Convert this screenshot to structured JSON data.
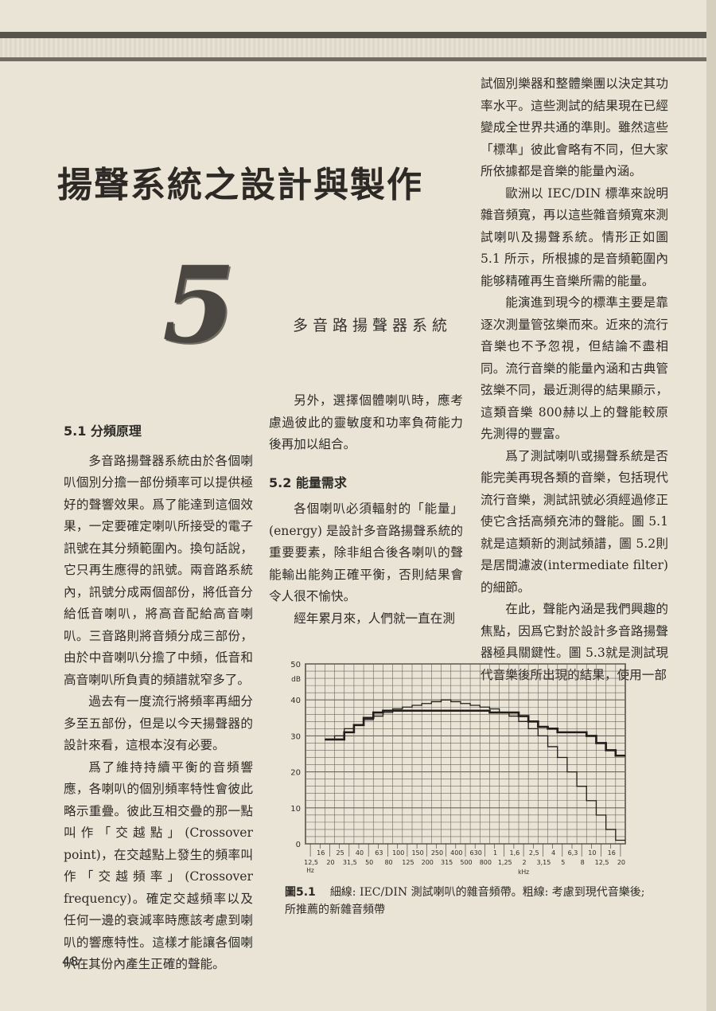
{
  "header": {
    "title": "揚聲系統之設計與製作",
    "chapter_number": "5",
    "chapter_subtitle": "多音路揚聲器系統"
  },
  "left_column": {
    "section1_heading": "5.1 分頻原理",
    "paragraphs": [
      "多音路揚聲器系統由於各個喇叭個別分擔一部份頻率可以提供極好的聲響效果。爲了能達到這個效果，一定要確定喇叭所接受的電子訊號在其分頻範圍內。換句話說，它只再生應得的訊號。兩音路系統內，訊號分成兩個部份，將低音分給低音喇叭，將高音配給高音喇叭。三音路則將音頻分成三部份，由於中音喇叭分擔了中頻，低音和高音喇叭所負責的頻譜就窄多了。",
      "過去有一度流行將頻率再細分多至五部份，但是以今天揚聲器的設計來看，這根本沒有必要。",
      "爲了維持持續平衡的音頻響應，各喇叭的個別頻率特性會彼此略示重疊。彼此互相交疊的那一點叫作「交越點」(Crossover point)，在交越點上發生的頻率叫作「交越頻率」(Crossover frequency)。確定交越頻率以及任何一邊的衰減率時應該考慮到喇叭的響應特性。這樣才能讓各個喇叭在其份內產生正確的聲能。"
    ]
  },
  "middle_column": {
    "paragraph_top": "另外，選擇個體喇叭時，應考慮過彼此的靈敏度和功率負荷能力後再加以組合。",
    "section2_heading": "5.2 能量需求",
    "paragraphs": [
      "各個喇叭必須輻射的「能量」(energy) 是設計多音路揚聲系統的重要要素，除非組合後各喇叭的聲能輸出能夠正確平衡，否則結果會令人很不愉快。",
      "經年累月來，人們就一直在測"
    ]
  },
  "right_column": {
    "paragraphs": [
      "試個別樂器和整體樂團以決定其功率水平。這些測試的結果現在已經變成全世界共通的準則。雖然這些「標準」彼此會略有不同，但大家所依據都是音樂的能量內涵。",
      "歐洲以 IEC/DIN 標準來說明雜音頻寬，再以這些雜音頻寬來測試喇叭及揚聲系統。情形正如圖 5.1 所示，所根據的是音頻範圍內能够精確再生音樂所需的能量。",
      "能演進到現今的標準主要是靠逐次測量管弦樂而來。近來的流行音樂也不予忽視，但結論不盡相同。流行音樂的能量內涵和古典管弦樂不同，最近測得的結果顯示，這類音樂 800赫以上的聲能較原先測得的豐富。",
      "爲了測試喇叭或揚聲系統是否能完美再現各類的音樂，包括現代流行音樂，測試訊號必須經過修正使它含括高頻充沛的聲能。圖 5.1 就是這類新的測試頻譜，圖 5.2則是居間濾波(intermediate filter)的細節。",
      "在此，聲能內涵是我們興趣的焦點，因爲它對於設計多音路揚聲器極具關鍵性。圖 5.3就是測試現代音樂後所出現的結果，使用一部"
    ]
  },
  "figure": {
    "number": "圖5.1",
    "caption": "細線: IEC/DIN 測試喇叭的雜音頻帶。粗線: 考慮到現代音樂後; 所推薦的新雜音頻帶"
  },
  "page_number": "48",
  "chart_data": {
    "type": "line",
    "ylabel": "dB",
    "xlabel": "kHz",
    "ylim": [
      0,
      50
    ],
    "yticks": [
      0,
      10,
      20,
      30,
      40,
      50
    ],
    "xticks": [
      "12,5",
      "16",
      "20",
      "25",
      "31,5",
      "40",
      "50",
      "63",
      "80",
      "100",
      "125",
      "150",
      "200",
      "250",
      "315",
      "400",
      "500",
      "630",
      "800",
      "1",
      "1,25",
      "1,6",
      "2",
      "2,5",
      "3,15",
      "4",
      "5",
      "6,3",
      "8",
      "10",
      "12,5",
      "16",
      "20"
    ],
    "x_unit_labels": [
      "Hz",
      "kHz"
    ],
    "grid": true,
    "series": [
      {
        "line": "thin",
        "values": [
          null,
          null,
          29,
          30,
          32,
          33,
          34.5,
          35.5,
          36.5,
          37.5,
          38,
          38.5,
          39,
          39.5,
          40,
          39.5,
          39,
          38.5,
          38,
          37.5,
          36.5,
          35.5,
          34,
          32,
          30,
          27,
          24,
          20,
          16,
          12,
          8,
          4,
          1
        ]
      },
      {
        "line": "thick",
        "values": [
          null,
          null,
          29,
          29,
          31,
          33,
          35,
          36.5,
          37,
          37,
          37,
          37,
          37,
          37,
          37,
          37,
          37,
          37,
          37,
          36.5,
          36.5,
          36.5,
          35.5,
          34,
          32.5,
          32,
          31,
          31,
          31,
          30,
          28,
          26,
          24.5
        ]
      }
    ]
  }
}
